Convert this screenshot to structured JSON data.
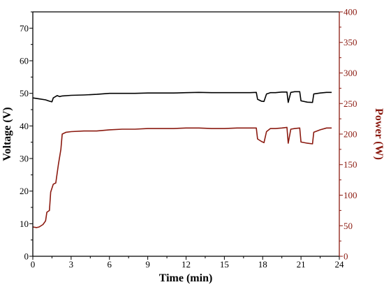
{
  "chart_data": {
    "type": "line",
    "title": "",
    "xlabel": "Time (min)",
    "ylabel_left": "Voltage (V)",
    "ylabel_right": "Power (W)",
    "xlim": [
      0,
      24
    ],
    "ylim_left": [
      0,
      75
    ],
    "ylim_right": [
      0,
      400
    ],
    "x_ticks": [
      "0",
      "3",
      "6",
      "9",
      "12",
      "15",
      "18",
      "21",
      "24"
    ],
    "y_left_ticks": [
      "0",
      "10",
      "20",
      "30",
      "40",
      "50",
      "60",
      "70"
    ],
    "y_right_ticks": [
      "0",
      "50",
      "100",
      "150",
      "200",
      "250",
      "300",
      "350",
      "400"
    ],
    "grid": false,
    "colors": {
      "voltage": "#000000",
      "power": "#8b1a10"
    },
    "series": [
      {
        "axis": "left",
        "points": [
          [
            0.0,
            48.6
          ],
          [
            0.5,
            48.3
          ],
          [
            1.0,
            48.0
          ],
          [
            1.3,
            47.6
          ],
          [
            1.5,
            47.4
          ],
          [
            1.6,
            48.6
          ],
          [
            1.9,
            49.3
          ],
          [
            2.1,
            49.0
          ],
          [
            2.3,
            49.2
          ],
          [
            3.0,
            49.4
          ],
          [
            4.0,
            49.5
          ],
          [
            5.0,
            49.7
          ],
          [
            6.0,
            50.0
          ],
          [
            7.0,
            50.0
          ],
          [
            8.0,
            50.0
          ],
          [
            9.0,
            50.1
          ],
          [
            10.0,
            50.1
          ],
          [
            11.0,
            50.1
          ],
          [
            12.0,
            50.2
          ],
          [
            13.0,
            50.3
          ],
          [
            14.0,
            50.2
          ],
          [
            15.0,
            50.2
          ],
          [
            16.0,
            50.2
          ],
          [
            17.0,
            50.2
          ],
          [
            17.5,
            50.3
          ],
          [
            17.6,
            48.2
          ],
          [
            17.9,
            47.6
          ],
          [
            18.1,
            47.5
          ],
          [
            18.3,
            49.8
          ],
          [
            18.6,
            50.2
          ],
          [
            19.0,
            50.2
          ],
          [
            19.5,
            50.4
          ],
          [
            19.9,
            50.4
          ],
          [
            20.0,
            47.2
          ],
          [
            20.2,
            50.3
          ],
          [
            20.5,
            50.5
          ],
          [
            20.9,
            50.5
          ],
          [
            21.0,
            47.7
          ],
          [
            21.5,
            47.3
          ],
          [
            21.9,
            47.2
          ],
          [
            22.0,
            49.8
          ],
          [
            22.5,
            50.1
          ],
          [
            23.0,
            50.3
          ],
          [
            23.4,
            50.3
          ]
        ]
      },
      {
        "axis": "right",
        "points": [
          [
            0.0,
            48
          ],
          [
            0.3,
            47
          ],
          [
            0.5,
            48
          ],
          [
            0.8,
            52
          ],
          [
            1.0,
            58
          ],
          [
            1.1,
            72
          ],
          [
            1.3,
            75
          ],
          [
            1.4,
            105
          ],
          [
            1.6,
            118
          ],
          [
            1.8,
            120
          ],
          [
            2.0,
            150
          ],
          [
            2.2,
            175
          ],
          [
            2.3,
            200
          ],
          [
            2.6,
            203
          ],
          [
            3.0,
            204
          ],
          [
            4.0,
            205
          ],
          [
            5.0,
            205
          ],
          [
            6.0,
            207
          ],
          [
            7.0,
            208
          ],
          [
            8.0,
            208
          ],
          [
            9.0,
            209
          ],
          [
            10.0,
            209
          ],
          [
            11.0,
            209
          ],
          [
            12.0,
            210
          ],
          [
            13.0,
            210
          ],
          [
            14.0,
            209
          ],
          [
            15.0,
            209
          ],
          [
            16.0,
            210
          ],
          [
            17.0,
            210
          ],
          [
            17.5,
            210
          ],
          [
            17.6,
            192
          ],
          [
            17.9,
            188
          ],
          [
            18.1,
            186
          ],
          [
            18.3,
            204
          ],
          [
            18.6,
            209
          ],
          [
            19.0,
            209
          ],
          [
            19.5,
            210
          ],
          [
            19.9,
            211
          ],
          [
            20.0,
            185
          ],
          [
            20.2,
            208
          ],
          [
            20.5,
            209
          ],
          [
            20.9,
            210
          ],
          [
            21.0,
            187
          ],
          [
            21.5,
            185
          ],
          [
            21.9,
            184
          ],
          [
            22.0,
            203
          ],
          [
            22.5,
            207
          ],
          [
            23.0,
            210
          ],
          [
            23.4,
            210
          ]
        ]
      }
    ]
  }
}
